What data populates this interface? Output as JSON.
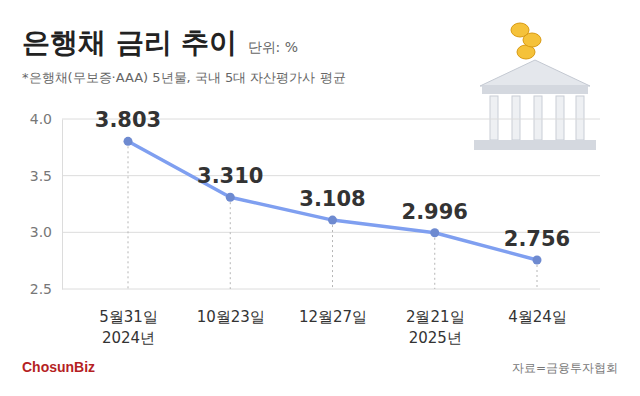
{
  "chart_data": {
    "type": "line",
    "title": "은행채 금리 추이",
    "unit": "단위: %",
    "subtitle": "*은행채(무보증·AAA) 5년물, 국내 5대 자산평가사 평균",
    "categories": [
      "5월31일\n2024년",
      "10월23일",
      "12월27일",
      "2월21일\n2025년",
      "4월24일"
    ],
    "values": [
      3.803,
      3.31,
      3.108,
      2.996,
      2.756
    ],
    "value_labels": [
      "3.803",
      "3.310",
      "3.108",
      "2.996",
      "2.756"
    ],
    "color": "#7f9ff0",
    "marker": "circle",
    "ylim": [
      2.5,
      4.0
    ],
    "yticks": [
      2.5,
      {
        "value": 3.0,
        "label": "3.0"
      },
      3.5,
      {
        "value": 4.0,
        "label": "4.0"
      }
    ],
    "grid": true,
    "data_labels": true,
    "source": "자료=금융투자협회",
    "logo": "ChosunBiz"
  }
}
